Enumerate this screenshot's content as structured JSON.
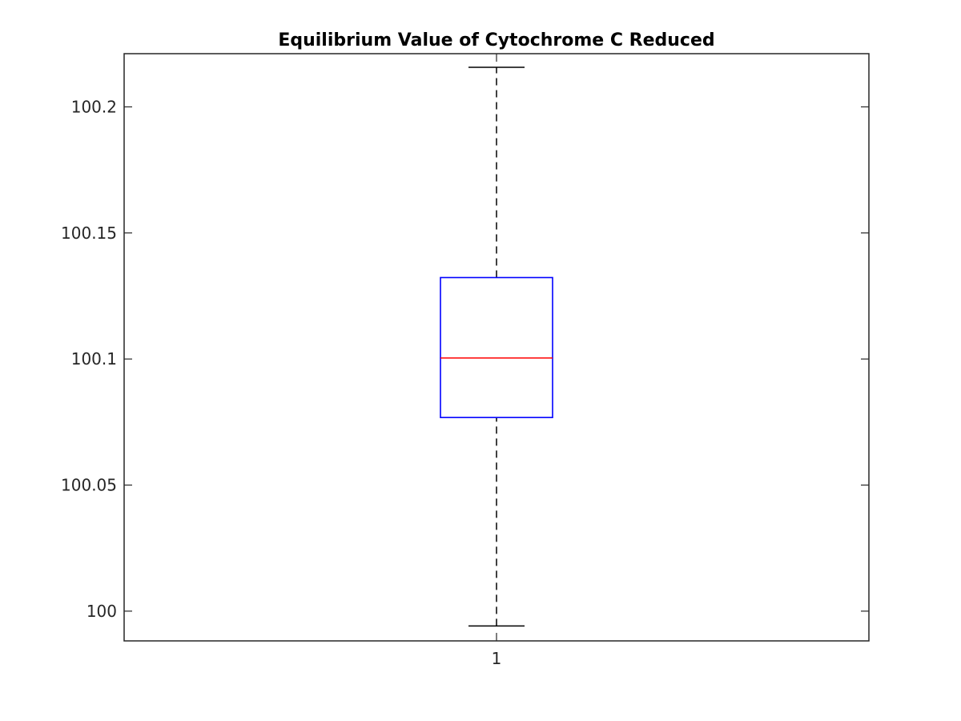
{
  "chart_data": {
    "type": "boxplot",
    "title": "Equilibrium Value of Cytochrome C Reduced",
    "xlabel": "",
    "ylabel": "",
    "categories": [
      "1"
    ],
    "ylim": [
      99.9882,
      100.2211
    ],
    "yticks": [
      100,
      100.05,
      100.1,
      100.15,
      100.2
    ],
    "ytick_labels": [
      "100",
      "100.05",
      "100.1",
      "100.15",
      "100.2"
    ],
    "boxes": [
      {
        "label": "1",
        "whisker_low": 99.9941,
        "q1": 100.0768,
        "median": 100.1004,
        "q3": 100.1323,
        "whisker_high": 100.2157
      }
    ],
    "grid": false,
    "colors": {
      "box": "#0000ff",
      "median": "#ff0000",
      "whisker": "#000000",
      "axes": "#262626"
    }
  }
}
